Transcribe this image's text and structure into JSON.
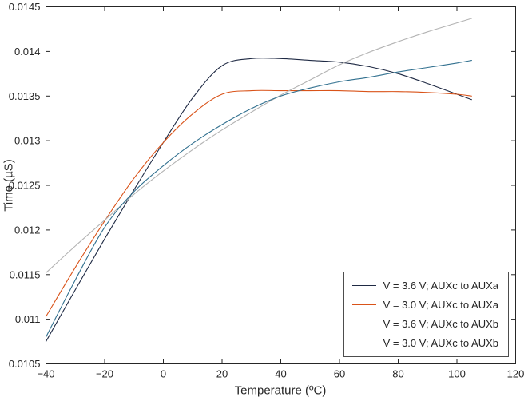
{
  "figure": {
    "background": "#ffffff",
    "axis_color": "#262626",
    "tick_label_color": "#262626",
    "legend_border_color": "#4d4d4d"
  },
  "chart_data": {
    "type": "line",
    "title": "",
    "xlabel": "Temperature (ºC)",
    "ylabel": "Time (µS)",
    "xlim": [
      -40,
      120
    ],
    "ylim": [
      0.0105,
      0.0145
    ],
    "xticks": [
      -40,
      -20,
      0,
      20,
      40,
      60,
      80,
      100,
      120
    ],
    "xtick_labels": [
      "−40",
      "−20",
      "0",
      "20",
      "40",
      "60",
      "80",
      "100",
      "120"
    ],
    "yticks": [
      0.0105,
      0.011,
      0.0115,
      0.012,
      0.0125,
      0.013,
      0.0135,
      0.014,
      0.0145
    ],
    "ytick_labels": [
      "0.0105",
      "0.011",
      "0.0115",
      "0.012",
      "0.0125",
      "0.013",
      "0.0135",
      "0.014",
      "0.0145"
    ],
    "grid": false,
    "legend_position": "bottom-right",
    "x": [
      -40,
      -30,
      -20,
      -10,
      0,
      10,
      20,
      30,
      40,
      50,
      60,
      70,
      80,
      90,
      100,
      105
    ],
    "series": [
      {
        "name": "V = 3.6 V; AUXc to AUXa",
        "color": "#1f2a44",
        "values": [
          0.01075,
          0.01133,
          0.0119,
          0.01245,
          0.01298,
          0.01348,
          0.01384,
          0.01392,
          0.01392,
          0.0139,
          0.01388,
          0.01383,
          0.01375,
          0.01364,
          0.01352,
          0.01346
        ]
      },
      {
        "name": "V = 3.0 V; AUXc to AUXa",
        "color": "#d95319",
        "values": [
          0.01103,
          0.01158,
          0.0121,
          0.01258,
          0.01298,
          0.0133,
          0.01352,
          0.01356,
          0.01356,
          0.01356,
          0.01356,
          0.01355,
          0.01355,
          0.01354,
          0.01352,
          0.0135
        ]
      },
      {
        "name": "V = 3.6 V; AUXc to AUXb",
        "color": "#b3b3b3",
        "values": [
          0.01152,
          0.01182,
          0.01211,
          0.0124,
          0.01266,
          0.0129,
          0.01312,
          0.01332,
          0.01351,
          0.01368,
          0.01385,
          0.01399,
          0.01411,
          0.01422,
          0.01432,
          0.01437
        ]
      },
      {
        "name": "V = 3.0 V; AUXc to AUXb",
        "color": "#31708f",
        "values": [
          0.0108,
          0.01144,
          0.01203,
          0.01243,
          0.01272,
          0.01297,
          0.01318,
          0.01336,
          0.0135,
          0.01359,
          0.01366,
          0.01371,
          0.01377,
          0.01382,
          0.01387,
          0.0139
        ]
      }
    ]
  }
}
